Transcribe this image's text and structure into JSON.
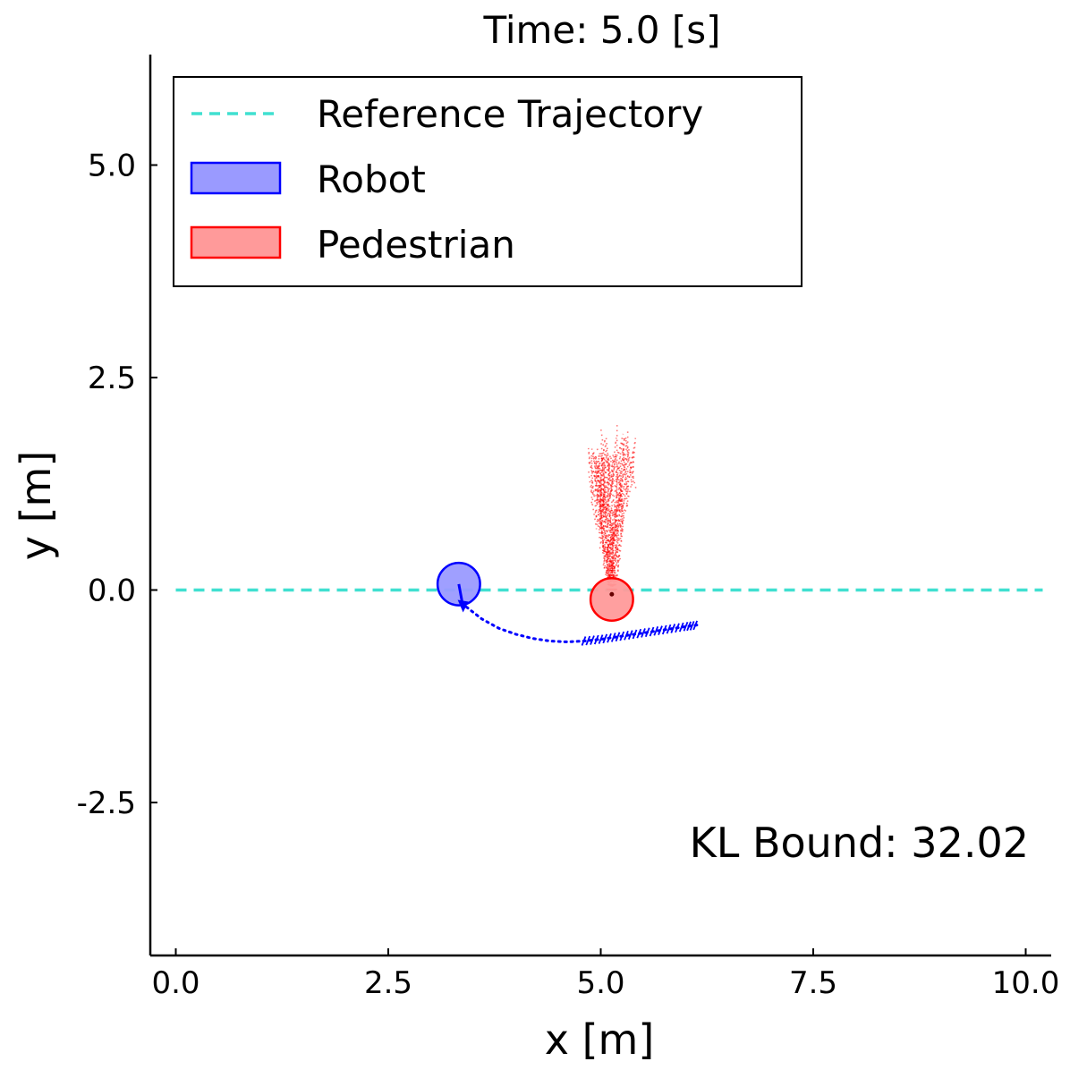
{
  "chart_data": {
    "type": "scatter",
    "title": "Time:  5.0 [s]",
    "xlabel": "x [m]",
    "ylabel": "y [m]",
    "xlim": [
      -0.3,
      10.3
    ],
    "ylim": [
      -4.3,
      6.3
    ],
    "grid": false,
    "legend_position": "top-left",
    "x_ticks": [
      0.0,
      2.5,
      5.0,
      7.5,
      10.0
    ],
    "x_tick_labels": [
      "0.0",
      "2.5",
      "5.0",
      "7.5",
      "10.0"
    ],
    "y_ticks": [
      -2.5,
      0.0,
      2.5,
      5.0
    ],
    "y_tick_labels": [
      "-2.5",
      "0.0",
      "2.5",
      "5.0"
    ],
    "legend": [
      {
        "label": "Reference Trajectory",
        "kind": "dashed-line",
        "color": "#40e0d0"
      },
      {
        "label": "Robot",
        "kind": "patch",
        "face": "#9a9aff",
        "edge": "#0000ff"
      },
      {
        "label": "Pedestrian",
        "kind": "patch",
        "face": "#ff9a9a",
        "edge": "#ff0000"
      }
    ],
    "series": [
      {
        "name": "Reference Trajectory",
        "style": "dashed",
        "color": "#40e0d0",
        "x": [
          0.0,
          10.2
        ],
        "y": [
          0.0,
          0.0
        ]
      },
      {
        "name": "Robot",
        "style": "circle",
        "center": [
          3.33,
          0.07
        ],
        "radius": 0.25,
        "heading_end": [
          3.38,
          -0.2
        ],
        "face": "#9a9aff",
        "edge": "#0000ff",
        "planned_path": {
          "x": [
            3.42,
            3.6,
            3.8,
            4.0,
            4.2,
            4.4,
            4.6,
            4.8,
            5.0,
            5.2,
            5.4,
            5.6,
            5.8,
            6.0,
            6.15
          ],
          "y": [
            -0.2,
            -0.34,
            -0.45,
            -0.52,
            -0.57,
            -0.6,
            -0.61,
            -0.6,
            -0.58,
            -0.55,
            -0.52,
            -0.49,
            -0.46,
            -0.43,
            -0.41
          ],
          "color": "#0000ff"
        }
      },
      {
        "name": "Pedestrian",
        "style": "circle",
        "center": [
          5.13,
          -0.11
        ],
        "radius": 0.25,
        "face": "#ff9a9a",
        "edge": "#ff0000",
        "predicted_samples": {
          "count": 40,
          "origin": [
            5.13,
            -0.05
          ],
          "spread_y": [
            0.0,
            1.95
          ],
          "spread_x": [
            4.8,
            5.5
          ],
          "color": "#ff0000"
        }
      }
    ],
    "annotations": [
      {
        "text": "KL Bound: 32.02",
        "position": "bottom-right"
      }
    ]
  }
}
